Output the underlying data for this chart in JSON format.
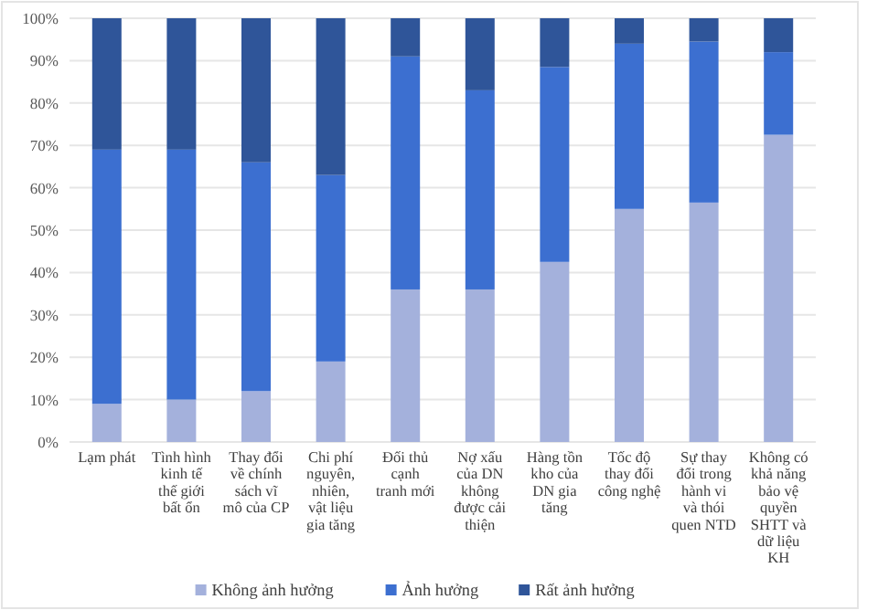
{
  "chart_data": {
    "type": "bar",
    "stacked": true,
    "categories": [
      "Lạm phát",
      "Tình hình kinh tế thế giới bất ổn",
      "Thay đổi về chính sách vĩ mô của CP",
      "Chi phí nguyên, nhiên, vật liệu gia tăng",
      "Đối thủ cạnh tranh mới",
      "Nợ xấu của DN không được cải thiện",
      "Hàng tồn kho của DN gia tăng",
      "Tốc độ thay đổi công nghệ",
      "Sự thay đổi trong hành vi và thói quen NTD",
      "Không có khả năng bảo vệ quyền SHTT và dữ liệu KH"
    ],
    "series": [
      {
        "name": "Không ảnh hưởng",
        "color": "#a4b1dc",
        "values": [
          9,
          10,
          12,
          19,
          36,
          36,
          42.5,
          55,
          56.5,
          72.5
        ]
      },
      {
        "name": "Ảnh hưởng",
        "color": "#3c6fd0",
        "values": [
          60,
          59,
          54,
          44,
          55,
          47,
          46,
          39,
          38,
          19.5
        ]
      },
      {
        "name": "Rất ảnh hưởng",
        "color": "#2f5599",
        "values": [
          31,
          31,
          34,
          37,
          9,
          17,
          11.5,
          6,
          5.5,
          8
        ]
      }
    ],
    "ylim": [
      0,
      100
    ],
    "yticks": [
      {
        "value": 0,
        "label": "0%"
      },
      {
        "value": 10,
        "label": "10%"
      },
      {
        "value": 20,
        "label": "20%"
      },
      {
        "value": 30,
        "label": "30%"
      },
      {
        "value": 40,
        "label": "40%"
      },
      {
        "value": 50,
        "label": "50%"
      },
      {
        "value": 60,
        "label": "60%"
      },
      {
        "value": 70,
        "label": "70%"
      },
      {
        "value": 80,
        "label": "80%"
      },
      {
        "value": 90,
        "label": "90%"
      },
      {
        "value": 100,
        "label": "100%"
      }
    ],
    "grid": "y",
    "legend": "bottom"
  }
}
